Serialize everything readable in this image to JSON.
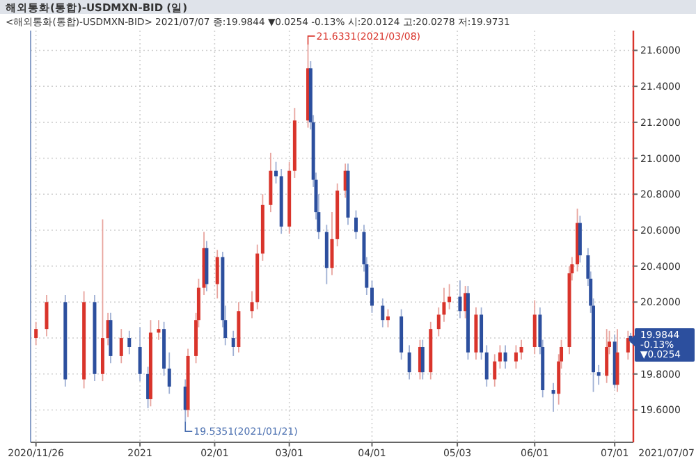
{
  "chart_data": {
    "type": "candlestick",
    "title": "해외통화(통합)-USDMXN-BID (일)",
    "subtitle": "<해외통화(통합)-USDMXN-BID> 2021/07/07 종:19.9844 ▼0.0254 -0.13% 시:20.0124 고:20.0278 저:19.9731",
    "x": [
      "2020-11-26",
      "2020-11-30",
      "2020-12-07",
      "2020-12-14",
      "2020-12-18",
      "2020-12-21",
      "2020-12-23",
      "2020-12-24",
      "2020-12-28",
      "2020-12-31",
      "2021-01-04",
      "2021-01-07",
      "2021-01-08",
      "2021-01-11",
      "2021-01-13",
      "2021-01-15",
      "2021-01-21",
      "2021-01-22",
      "2021-01-25",
      "2021-01-26",
      "2021-01-28",
      "2021-01-29",
      "2021-02-02",
      "2021-02-04",
      "2021-02-05",
      "2021-02-08",
      "2021-02-10",
      "2021-02-15",
      "2021-02-17",
      "2021-02-19",
      "2021-02-22",
      "2021-02-24",
      "2021-02-26",
      "2021-03-01",
      "2021-03-03",
      "2021-03-08",
      "2021-03-09",
      "2021-03-10",
      "2021-03-11",
      "2021-03-12",
      "2021-03-15",
      "2021-03-17",
      "2021-03-19",
      "2021-03-22",
      "2021-03-23",
      "2021-03-26",
      "2021-03-29",
      "2021-03-30",
      "2021-04-01",
      "2021-04-05",
      "2021-04-07",
      "2021-04-12",
      "2021-04-15",
      "2021-04-19",
      "2021-04-20",
      "2021-04-23",
      "2021-04-26",
      "2021-04-28",
      "2021-04-30",
      "2021-05-04",
      "2021-05-06",
      "2021-05-07",
      "2021-05-10",
      "2021-05-12",
      "2021-05-14",
      "2021-05-17",
      "2021-05-19",
      "2021-05-21",
      "2021-05-25",
      "2021-05-27",
      "2021-06-01",
      "2021-06-03",
      "2021-06-04",
      "2021-06-08",
      "2021-06-10",
      "2021-06-11",
      "2021-06-14",
      "2021-06-15",
      "2021-06-17",
      "2021-06-18",
      "2021-06-21",
      "2021-06-22",
      "2021-06-23",
      "2021-06-25",
      "2021-06-28",
      "2021-06-29",
      "2021-07-01",
      "2021-07-02",
      "2021-07-06",
      "2021-07-07"
    ],
    "ohlc": [
      [
        20.0,
        20.09,
        19.96,
        20.05
      ],
      [
        20.05,
        20.24,
        20.01,
        20.2
      ],
      [
        20.2,
        20.24,
        19.73,
        19.77
      ],
      [
        19.77,
        20.26,
        19.72,
        20.2
      ],
      [
        20.2,
        20.24,
        19.76,
        19.8
      ],
      [
        19.8,
        20.66,
        19.76,
        20.0
      ],
      [
        20.0,
        20.14,
        19.96,
        20.1
      ],
      [
        20.1,
        20.14,
        19.86,
        19.9
      ],
      [
        19.9,
        20.05,
        19.86,
        20.0
      ],
      [
        20.0,
        20.04,
        19.91,
        19.95
      ],
      [
        19.95,
        20.06,
        19.76,
        19.8
      ],
      [
        19.8,
        19.84,
        19.61,
        19.66
      ],
      [
        19.66,
        20.1,
        19.62,
        20.03
      ],
      [
        20.03,
        20.1,
        19.99,
        20.05
      ],
      [
        20.05,
        20.09,
        19.79,
        19.83
      ],
      [
        19.83,
        19.92,
        19.69,
        19.73
      ],
      [
        19.73,
        19.77,
        19.5351,
        19.6
      ],
      [
        19.6,
        19.94,
        19.56,
        19.9
      ],
      [
        19.9,
        20.14,
        19.86,
        20.1
      ],
      [
        20.1,
        20.33,
        20.06,
        20.28
      ],
      [
        20.28,
        20.59,
        20.24,
        20.5
      ],
      [
        20.5,
        20.54,
        20.26,
        20.3
      ],
      [
        20.3,
        20.49,
        20.22,
        20.45
      ],
      [
        20.45,
        20.48,
        20.06,
        20.1
      ],
      [
        20.1,
        20.18,
        19.96,
        20.0
      ],
      [
        20.0,
        20.04,
        19.9,
        19.95
      ],
      [
        19.95,
        20.2,
        19.92,
        20.15
      ],
      [
        20.15,
        20.26,
        20.11,
        20.2
      ],
      [
        20.2,
        20.52,
        20.16,
        20.47
      ],
      [
        20.47,
        20.8,
        20.43,
        20.74
      ],
      [
        20.74,
        21.03,
        20.7,
        20.93
      ],
      [
        20.93,
        20.98,
        20.86,
        20.9
      ],
      [
        20.9,
        20.94,
        20.58,
        20.62
      ],
      [
        20.62,
        20.98,
        20.58,
        20.93
      ],
      [
        20.93,
        21.28,
        20.89,
        21.21
      ],
      [
        21.21,
        21.6331,
        21.17,
        21.5
      ],
      [
        21.5,
        21.54,
        21.16,
        21.2
      ],
      [
        21.2,
        21.24,
        20.84,
        20.88
      ],
      [
        20.88,
        20.92,
        20.66,
        20.7
      ],
      [
        20.7,
        20.8,
        20.55,
        20.59
      ],
      [
        20.59,
        20.63,
        20.3,
        20.39
      ],
      [
        20.39,
        20.7,
        20.35,
        20.55
      ],
      [
        20.55,
        20.86,
        20.51,
        20.82
      ],
      [
        20.82,
        20.97,
        20.78,
        20.93
      ],
      [
        20.93,
        20.97,
        20.63,
        20.67
      ],
      [
        20.67,
        20.71,
        20.55,
        20.59
      ],
      [
        20.59,
        20.63,
        20.37,
        20.41
      ],
      [
        20.41,
        20.45,
        20.24,
        20.28
      ],
      [
        20.28,
        20.32,
        20.14,
        20.18
      ],
      [
        20.18,
        20.22,
        20.06,
        20.1
      ],
      [
        20.1,
        20.16,
        20.06,
        20.12
      ],
      [
        20.12,
        20.16,
        19.88,
        19.92
      ],
      [
        19.92,
        19.96,
        19.77,
        19.81
      ],
      [
        19.81,
        19.99,
        19.77,
        19.95
      ],
      [
        19.95,
        19.99,
        19.77,
        19.81
      ],
      [
        19.81,
        20.09,
        19.77,
        20.05
      ],
      [
        20.05,
        20.17,
        20.01,
        20.13
      ],
      [
        20.13,
        20.28,
        20.09,
        20.2
      ],
      [
        20.2,
        20.3,
        20.16,
        20.23
      ],
      [
        20.23,
        20.32,
        20.11,
        20.15
      ],
      [
        20.15,
        20.29,
        20.11,
        20.25
      ],
      [
        20.25,
        20.29,
        19.88,
        19.92
      ],
      [
        19.92,
        20.17,
        19.88,
        20.13
      ],
      [
        20.13,
        20.17,
        19.88,
        19.92
      ],
      [
        19.92,
        19.96,
        19.73,
        19.77
      ],
      [
        19.77,
        19.91,
        19.73,
        19.87
      ],
      [
        19.87,
        19.96,
        19.83,
        19.92
      ],
      [
        19.92,
        19.96,
        19.83,
        19.87
      ],
      [
        19.87,
        19.96,
        19.83,
        19.92
      ],
      [
        19.92,
        19.99,
        19.88,
        19.95
      ],
      [
        19.95,
        20.21,
        19.91,
        20.13
      ],
      [
        20.13,
        20.17,
        19.91,
        19.95
      ],
      [
        19.95,
        19.99,
        19.67,
        19.71
      ],
      [
        19.71,
        19.75,
        19.59,
        19.69
      ],
      [
        19.69,
        19.91,
        19.63,
        19.87
      ],
      [
        19.87,
        19.99,
        19.83,
        19.95
      ],
      [
        19.95,
        20.4,
        19.91,
        20.36
      ],
      [
        20.36,
        20.45,
        20.32,
        20.41
      ],
      [
        20.41,
        20.72,
        20.37,
        20.64
      ],
      [
        20.64,
        20.68,
        20.42,
        20.46
      ],
      [
        20.46,
        20.5,
        20.29,
        20.33
      ],
      [
        20.33,
        20.37,
        20.14,
        20.18
      ],
      [
        20.18,
        20.22,
        19.7,
        19.81
      ],
      [
        19.81,
        19.85,
        19.74,
        19.79
      ],
      [
        19.79,
        20.05,
        19.75,
        19.95
      ],
      [
        19.95,
        20.04,
        19.91,
        19.98
      ],
      [
        19.98,
        20.02,
        19.72,
        19.74
      ],
      [
        19.74,
        20.05,
        19.7,
        19.92
      ],
      [
        19.92,
        20.04,
        19.88,
        20.0
      ],
      [
        20.0124,
        20.0278,
        19.9731,
        19.9844
      ]
    ],
    "xlim": [
      "2020-11-24",
      "2021-07-08"
    ],
    "xticks": [
      {
        "value": "2020-11-26",
        "label": "2020/11/26"
      },
      {
        "value": "2021-01-04",
        "label": "2021"
      },
      {
        "value": "2021-02-01",
        "label": "02/01"
      },
      {
        "value": "2021-03-01",
        "label": "03/01"
      },
      {
        "value": "2021-04-01",
        "label": "04/01"
      },
      {
        "value": "2021-05-03",
        "label": "05/03"
      },
      {
        "value": "2021-06-01",
        "label": "06/01"
      },
      {
        "value": "2021-07-01",
        "label": "07/01"
      }
    ],
    "ylim": [
      19.42,
      21.71
    ],
    "yticks": [
      {
        "value": 19.6,
        "label": "19.6000"
      },
      {
        "value": 19.8,
        "label": "19.8000"
      },
      {
        "value": 20.0,
        "label": null
      },
      {
        "value": 20.2,
        "label": "20.2000"
      },
      {
        "value": 20.4,
        "label": "20.4000"
      },
      {
        "value": 20.6,
        "label": "20.6000"
      },
      {
        "value": 20.8,
        "label": "20.8000"
      },
      {
        "value": 21.0,
        "label": "21.0000"
      },
      {
        "value": 21.2,
        "label": "21.2000"
      },
      {
        "value": 21.4,
        "label": "21.4000"
      },
      {
        "value": 21.6,
        "label": "21.6000"
      }
    ],
    "grid": true,
    "annotations": [
      {
        "text": "21.6331(2021/03/08)",
        "x": "2021-03-08",
        "y": 21.6331
      },
      {
        "text": "19.5351(2021/01/21)",
        "x": "2021-01-21",
        "y": 19.5351
      },
      {
        "text": "19.9844\n-0.13%\n▼0.0254",
        "x": "2021-07-07",
        "y": 19.9844
      },
      "2021/07/07"
    ]
  }
}
